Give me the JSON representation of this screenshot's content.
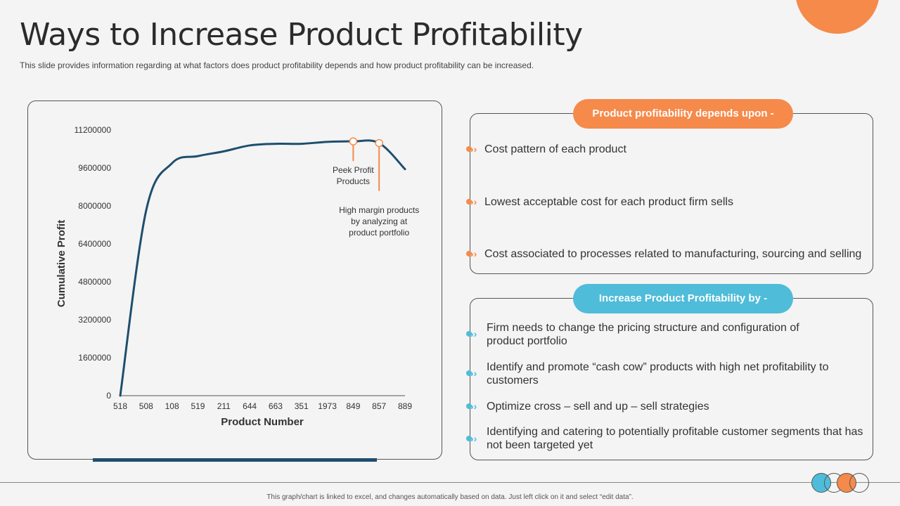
{
  "title": "Ways to Increase Product Profitability",
  "subtitle": "This slide provides  information  regarding  at what factors does  product profitability depends and  how product profitability can be increased.",
  "chart_data": {
    "type": "line",
    "title": "",
    "xlabel": "Product Number",
    "ylabel": "Cumulative Profit",
    "categories": [
      "518",
      "508",
      "108",
      "519",
      "211",
      "644",
      "663",
      "351",
      "1973",
      "849",
      "857",
      "889"
    ],
    "series": [
      {
        "values": [
          0,
          7800000,
          9800000,
          10100000,
          10300000,
          10550000,
          10620000,
          10620000,
          10700000,
          10720000,
          10650000,
          9550000
        ]
      }
    ],
    "yticks": [
      0,
      1600000,
      3200000,
      4800000,
      6400000,
      8000000,
      9600000,
      11200000
    ],
    "ylim": [
      0,
      11200000
    ],
    "grid": false,
    "line_color": "#1f4e6e",
    "annotations": [
      {
        "text_lines": [
          "Peek Profit",
          "Products"
        ],
        "x": "849",
        "y": 10720000,
        "color": "#f58a4b"
      },
      {
        "text_lines": [
          "High margin products",
          "by analyzing at",
          "product portfolio"
        ],
        "x": "857",
        "y": 10650000,
        "color": "#f58a4b"
      }
    ]
  },
  "depends": {
    "heading": "Product profitability depends upon  -",
    "items": [
      "Cost pattern of each product",
      "Lowest acceptable cost for each product firm sells",
      "Cost associated to  processes related to manufacturing,  sourcing and selling"
    ]
  },
  "increase": {
    "heading": "Increase Product Profitability by -",
    "items": [
      [
        "Firm needs to change the pricing structure  and configuration  of",
        "product portfolio"
      ],
      [
        "Identify  and promote “cash cow” products with high net profitability to",
        "customers"
      ],
      [
        "Optimize cross – sell and up – sell strategies"
      ],
      [
        "Identifying  and catering to potentially profitable customer segments that has",
        "not been targeted yet"
      ]
    ]
  },
  "footer": "This graph/chart is linked to excel, and changes automatically based on data. Just left click on it and select “edit data”.",
  "colors": {
    "orange": "#f58a4b",
    "blue": "#4fbcd9",
    "navy": "#1f4e6e"
  }
}
